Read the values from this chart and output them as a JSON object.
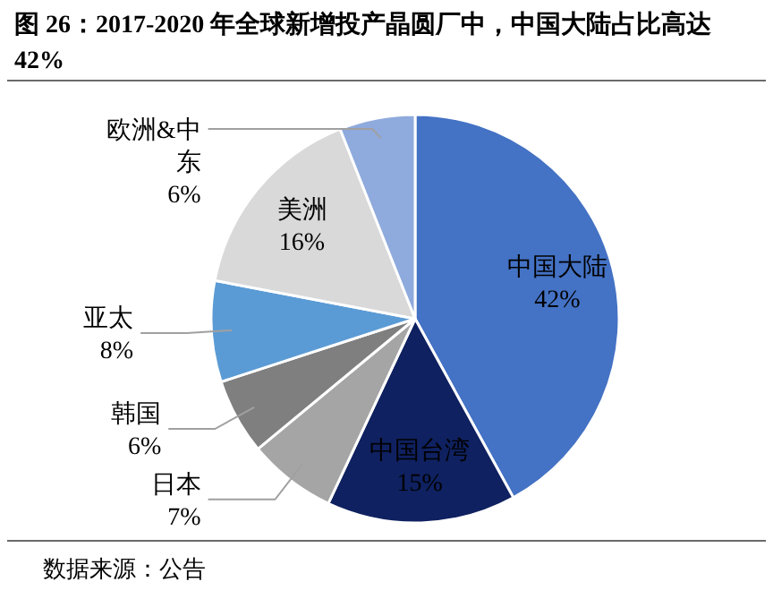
{
  "chart_data": {
    "type": "pie",
    "title": "图 26：2017-2020 年全球新增投产晶圆厂中，中国大陆占比高达 42%",
    "categories": [
      "中国大陆",
      "中国台湾",
      "日本",
      "韩国",
      "亚太",
      "美洲",
      "欧洲&中东"
    ],
    "values": [
      42,
      15,
      7,
      6,
      8,
      16,
      6
    ],
    "colors": [
      "#4472c4",
      "#0f2160",
      "#a5a5a5",
      "#7f7f7f",
      "#5b9bd5",
      "#d9d9d9",
      "#8faadc"
    ],
    "value_labels": [
      "42%",
      "15%",
      "7%",
      "6%",
      "8%",
      "16%",
      "6%"
    ],
    "annotations": [
      "数据来源：公告"
    ]
  }
}
